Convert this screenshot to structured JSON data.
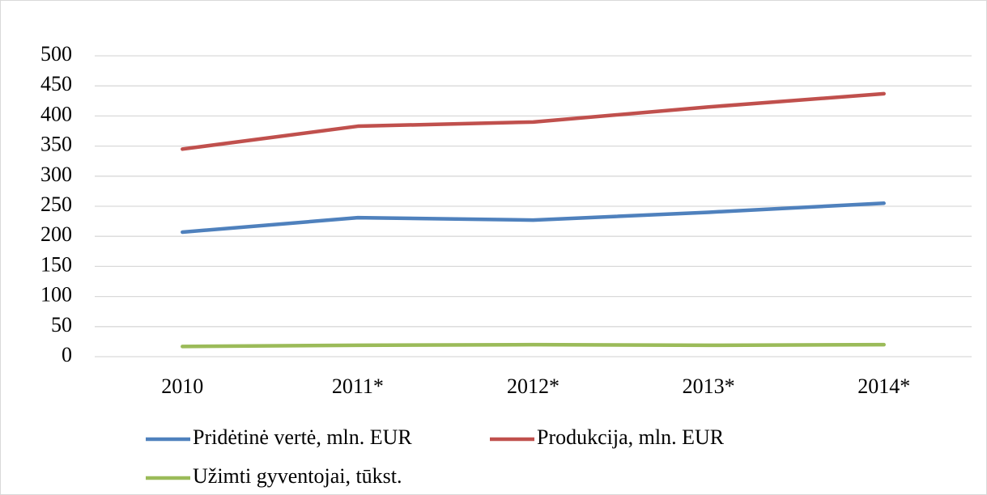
{
  "chart_data": {
    "type": "line",
    "categories": [
      "2010",
      "2011*",
      "2012*",
      "2013*",
      "2014*"
    ],
    "series": [
      {
        "name": "Pridėtinė vertė, mln. EUR",
        "color": "#4f81bd",
        "values": [
          207,
          231,
          227,
          240,
          255
        ]
      },
      {
        "name": "Produkcija, mln. EUR",
        "color": "#c0504d",
        "values": [
          345,
          383,
          390,
          415,
          437
        ]
      },
      {
        "name": "Užimti gyventojai, tūkst.",
        "color": "#9bbb59",
        "values": [
          17,
          19,
          20,
          19,
          20
        ]
      }
    ],
    "ylim": [
      0,
      500
    ],
    "yticks": [
      0,
      50,
      100,
      150,
      200,
      250,
      300,
      350,
      400,
      450,
      500
    ],
    "grid": true,
    "legend": "bottom"
  }
}
